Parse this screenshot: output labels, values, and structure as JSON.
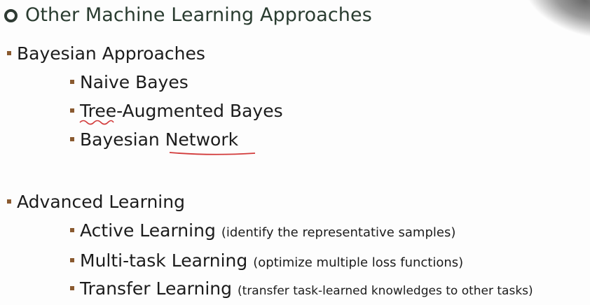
{
  "slide": {
    "title": "Other Machine Learning Approaches",
    "sections": [
      {
        "heading": "Bayesian Approaches",
        "items": [
          {
            "label": "Naive Bayes"
          },
          {
            "label": "Tree-Augmented Bayes"
          },
          {
            "label": "Bayesian Network"
          }
        ]
      },
      {
        "heading": "Advanced Learning",
        "items": [
          {
            "label": "Active Learning",
            "note": "(identify the representative samples)"
          },
          {
            "label": "Multi-task Learning",
            "note": "(optimize multiple loss functions)"
          },
          {
            "label": "Transfer Learning",
            "note": "(transfer task-learned knowledges to other tasks)"
          }
        ]
      }
    ]
  }
}
